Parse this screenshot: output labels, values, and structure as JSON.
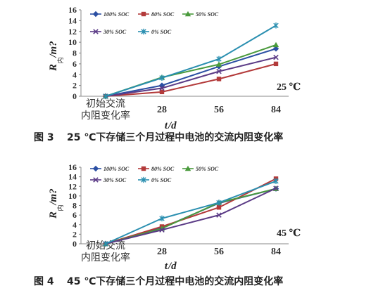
{
  "chart_data": [
    {
      "type": "line",
      "categories": [
        "初始交流内阻变化率",
        "28",
        "56",
        "84"
      ],
      "category_lines": [
        [
          "初始交流",
          "内阻变化率"
        ],
        [
          "28"
        ],
        [
          "56"
        ],
        [
          "84"
        ]
      ],
      "xlabel_main": "t",
      "xlabel_unit": "/d",
      "ylabel_main": "R",
      "ylabel_sub": "内",
      "ylabel_unit": "/m?",
      "ylim": [
        0,
        16
      ],
      "yticks": [
        0,
        2,
        4,
        6,
        8,
        10,
        12,
        14,
        16
      ],
      "temperature": "25 ℃",
      "series": [
        {
          "name": "100% SOC",
          "color": "#2b4fa3",
          "marker": "diamond",
          "values": [
            0,
            2.0,
            5.5,
            8.8
          ]
        },
        {
          "name": "80% SOC",
          "color": "#b33a3a",
          "marker": "square",
          "values": [
            0,
            0.8,
            3.2,
            6.0
          ]
        },
        {
          "name": "50% SOC",
          "color": "#4a9a3c",
          "marker": "triangle",
          "values": [
            0,
            3.5,
            5.9,
            9.5
          ]
        },
        {
          "name": "30% SOC",
          "color": "#5b3b86",
          "marker": "x",
          "values": [
            0,
            1.5,
            4.6,
            7.2
          ]
        },
        {
          "name": "0% SOC",
          "color": "#2a8fb0",
          "marker": "star",
          "values": [
            0,
            3.4,
            6.9,
            13.1
          ]
        }
      ],
      "caption_fig": "图 3",
      "caption_text": "25 ℃下存储三个月过程中电池的交流内阻变化率"
    },
    {
      "type": "line",
      "categories": [
        "初始交流内阻变化率",
        "28",
        "56",
        "84"
      ],
      "category_lines": [
        [
          "初始交流",
          "内阻变化率"
        ],
        [
          "28"
        ],
        [
          "56"
        ],
        [
          "84"
        ]
      ],
      "xlabel_main": "t",
      "xlabel_unit": "/d",
      "ylabel_main": "R",
      "ylabel_sub": "内",
      "ylabel_unit": "/m?",
      "ylim": [
        0,
        16
      ],
      "yticks": [
        0,
        2,
        4,
        6,
        8,
        10,
        12,
        14,
        16
      ],
      "temperature": "45 ℃",
      "series": [
        {
          "name": "100% SOC",
          "color": "#2b4fa3",
          "marker": "diamond",
          "values": [
            0,
            3.3,
            8.5,
            11.5
          ]
        },
        {
          "name": "80% SOC",
          "color": "#b33a3a",
          "marker": "square",
          "values": [
            0,
            3.6,
            7.6,
            13.6
          ]
        },
        {
          "name": "50% SOC",
          "color": "#4a9a3c",
          "marker": "triangle",
          "values": [
            0,
            3.2,
            8.6,
            11.5
          ]
        },
        {
          "name": "30% SOC",
          "color": "#5b3b86",
          "marker": "x",
          "values": [
            0,
            2.9,
            6.0,
            11.6
          ]
        },
        {
          "name": "0% SOC",
          "color": "#2a8fb0",
          "marker": "star",
          "values": [
            0,
            5.3,
            8.6,
            13.1
          ]
        }
      ],
      "caption_fig": "图 4",
      "caption_text": "45 ℃下存储三个月过程中电池的交流内阻变化率"
    }
  ]
}
